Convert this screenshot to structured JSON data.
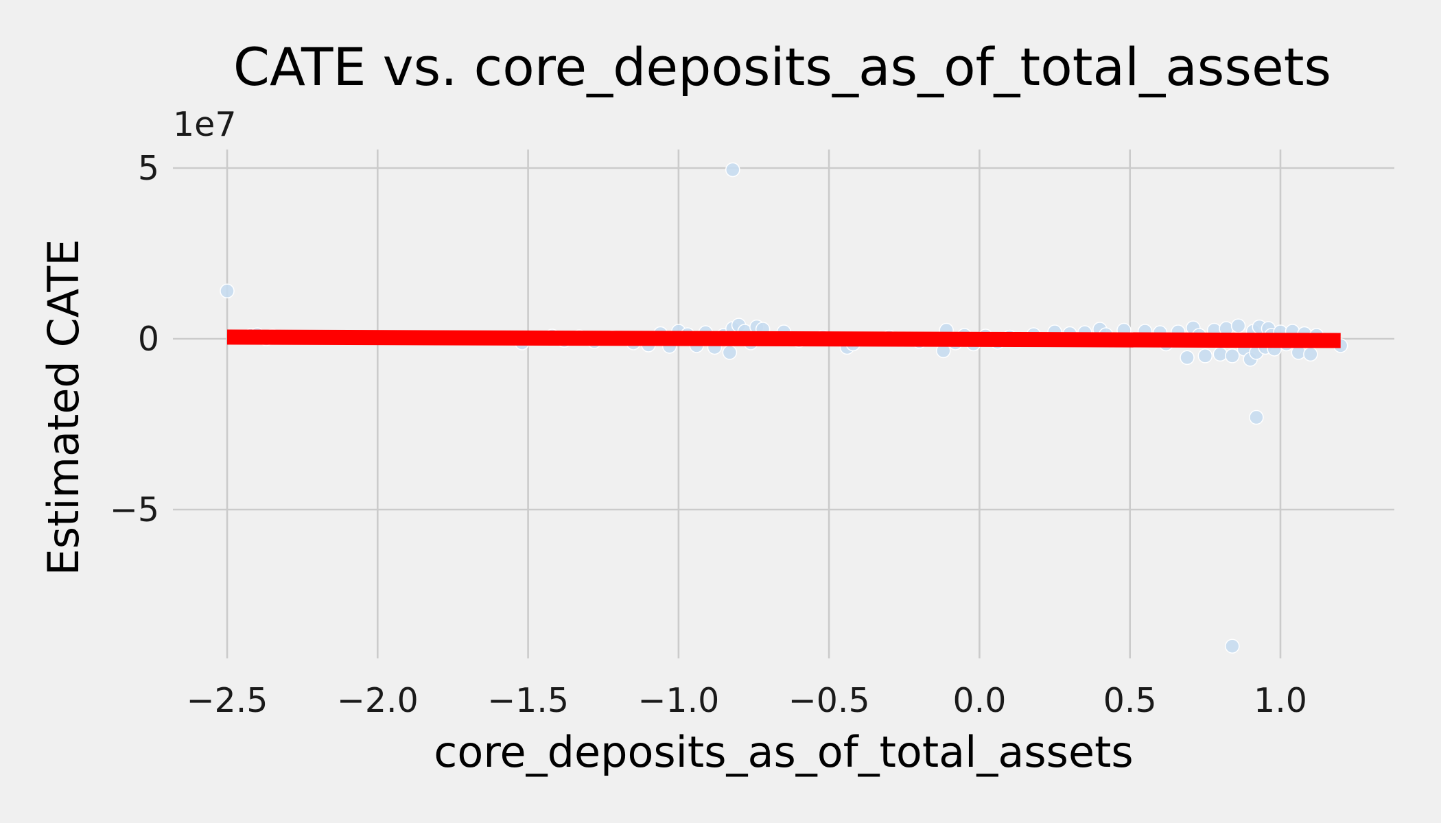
{
  "chart_data": {
    "type": "scatter",
    "title": "CATE vs. core_deposits_as_of_total_assets",
    "xlabel": "core_deposits_as_of_total_assets",
    "ylabel": "Estimated CATE",
    "y_offset_label": "1e7",
    "xlim": [
      -2.63,
      1.38
    ],
    "ylim": [
      -9.3,
      5.2
    ],
    "x_ticks": [
      -2.5,
      -2.0,
      -1.5,
      -1.0,
      -0.5,
      0.0,
      0.5,
      1.0
    ],
    "x_tick_labels": [
      "−2.5",
      "−2.0",
      "−1.5",
      "−1.0",
      "−0.5",
      "0.0",
      "0.5",
      "1.0"
    ],
    "y_ticks": [
      5,
      0,
      -5
    ],
    "y_tick_labels": [
      "5",
      "0",
      "−5"
    ],
    "grid": true,
    "point_color": "#c6dbef",
    "fit_color": "#ff0000",
    "fit_line": {
      "x": [
        -2.5,
        1.2
      ],
      "y": [
        0.05,
        -0.05
      ]
    },
    "points": {
      "x": [
        -2.5,
        -2.45,
        -2.42,
        -2.4,
        -2.37,
        -2.35,
        -1.52,
        -1.42,
        -1.38,
        -1.33,
        -1.28,
        -1.22,
        -1.15,
        -1.1,
        -1.06,
        -1.03,
        -1.0,
        -0.97,
        -0.94,
        -0.91,
        -0.88,
        -0.85,
        -0.83,
        -0.82,
        -0.8,
        -0.78,
        -0.76,
        -0.74,
        -0.72,
        -0.65,
        -0.6,
        -0.52,
        -0.44,
        -0.42,
        -0.3,
        -0.2,
        -0.12,
        -0.11,
        -0.08,
        -0.05,
        -0.02,
        0.02,
        0.06,
        0.1,
        0.18,
        0.25,
        0.3,
        0.35,
        0.4,
        0.42,
        0.48,
        0.55,
        0.6,
        0.62,
        0.66,
        0.69,
        0.71,
        0.73,
        0.75,
        0.78,
        0.8,
        0.82,
        0.84,
        0.86,
        0.88,
        0.9,
        0.91,
        0.92,
        0.93,
        0.95,
        0.96,
        0.97,
        0.98,
        1.0,
        1.02,
        1.04,
        1.06,
        1.08,
        1.1,
        1.12,
        1.2,
        -0.82,
        0.92,
        0.84
      ],
      "y": [
        1.4,
        0.05,
        0.1,
        0.12,
        0.0,
        0.08,
        -0.12,
        0.08,
        -0.05,
        0.06,
        -0.08,
        0.04,
        -0.12,
        -0.18,
        0.15,
        -0.22,
        0.22,
        0.12,
        -0.2,
        0.18,
        -0.25,
        0.1,
        -0.4,
        0.3,
        0.4,
        0.22,
        -0.12,
        0.35,
        0.28,
        0.2,
        -0.05,
        0.05,
        -0.25,
        -0.15,
        0.05,
        -0.08,
        -0.35,
        0.25,
        -0.12,
        0.1,
        -0.15,
        0.08,
        -0.1,
        0.05,
        0.12,
        0.2,
        0.15,
        0.18,
        0.28,
        0.12,
        0.25,
        0.22,
        0.18,
        -0.15,
        0.2,
        -0.55,
        0.32,
        0.1,
        -0.5,
        0.25,
        -0.45,
        0.3,
        -0.5,
        0.38,
        -0.3,
        -0.6,
        0.22,
        -0.4,
        0.35,
        -0.25,
        0.3,
        0.1,
        -0.3,
        0.2,
        -0.15,
        0.22,
        -0.4,
        0.15,
        -0.45,
        0.1,
        -0.2,
        4.95,
        -2.3,
        -9.0
      ]
    }
  }
}
